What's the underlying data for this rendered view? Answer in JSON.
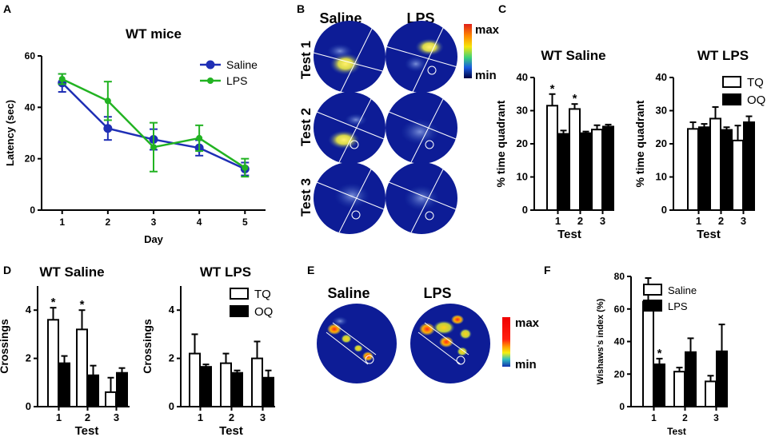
{
  "panel_labels": {
    "a": "A",
    "b": "B",
    "c": "C",
    "d": "D",
    "e": "E",
    "f": "F"
  },
  "heatmap_b": {
    "col_labels": [
      "Saline",
      "LPS"
    ],
    "row_labels": [
      "Test 1",
      "Test 2",
      "Test 3"
    ],
    "scale_max": "max",
    "scale_min": "min"
  },
  "heatmap_e": {
    "labels": [
      "Saline",
      "LPS"
    ],
    "scale_max": "max",
    "scale_min": "min"
  },
  "colors": {
    "saline_line": "#1f2fb5",
    "lps_line": "#22b322",
    "tq_fill": "#ffffff",
    "oq_fill": "#000000",
    "heat_bg": "#0a1a9a"
  },
  "chart_data": [
    {
      "id": "A",
      "type": "line",
      "title": "WT mice",
      "xlabel": "Day",
      "ylabel": "Latency (sec)",
      "x": [
        1,
        2,
        3,
        4,
        5
      ],
      "xlim": [
        0.55,
        5.45
      ],
      "ylim": [
        0,
        60
      ],
      "yticks": [
        0,
        20,
        40,
        60
      ],
      "legend_position": "top-right",
      "series": [
        {
          "name": "Saline",
          "values": [
            49.5,
            31.8,
            27.5,
            24.2,
            16.0
          ],
          "errors": [
            3.5,
            4.5,
            4.0,
            3.0,
            2.5
          ],
          "color": "#1f2fb5"
        },
        {
          "name": "LPS",
          "values": [
            51.0,
            42.5,
            24.5,
            28.0,
            16.5
          ],
          "errors": [
            2.0,
            7.5,
            9.5,
            5.0,
            3.5
          ],
          "color": "#22b322"
        }
      ]
    },
    {
      "id": "C1",
      "type": "bar",
      "title": "WT Saline",
      "xlabel": "Test",
      "ylabel": "% time quadrant",
      "categories": [
        "1",
        "2",
        "3"
      ],
      "ylim": [
        0,
        40
      ],
      "yticks": [
        0,
        10,
        20,
        30,
        40
      ],
      "series": [
        {
          "name": "TQ",
          "values": [
            31.5,
            30.5,
            24.3
          ],
          "errors": [
            3.5,
            1.5,
            1.3
          ]
        },
        {
          "name": "OQ",
          "values": [
            23.0,
            23.2,
            25.2
          ],
          "errors": [
            1.0,
            0.5,
            0.6
          ]
        }
      ],
      "annotations": [
        {
          "category": "1",
          "text": "*"
        },
        {
          "category": "2",
          "text": "*"
        }
      ]
    },
    {
      "id": "C2",
      "type": "bar",
      "title": "WT LPS",
      "xlabel": "Test",
      "ylabel": "% time quadrant",
      "categories": [
        "1",
        "2",
        "3"
      ],
      "ylim": [
        0,
        40
      ],
      "yticks": [
        0,
        10,
        20,
        30,
        40
      ],
      "legend_position": "top-right",
      "series": [
        {
          "name": "TQ",
          "values": [
            24.5,
            27.6,
            21.0
          ],
          "errors": [
            2.0,
            3.5,
            4.5
          ]
        },
        {
          "name": "OQ",
          "values": [
            25.0,
            24.2,
            26.5
          ],
          "errors": [
            1.0,
            0.8,
            1.8
          ]
        }
      ]
    },
    {
      "id": "D1",
      "type": "bar",
      "title": "WT Saline",
      "xlabel": "Test",
      "ylabel": "Crossings",
      "categories": [
        "1",
        "2",
        "3"
      ],
      "ylim": [
        0,
        5
      ],
      "yticks": [
        0,
        2,
        4
      ],
      "series": [
        {
          "name": "TQ",
          "values": [
            3.6,
            3.2,
            0.6
          ],
          "errors": [
            0.5,
            0.8,
            0.6
          ]
        },
        {
          "name": "OQ",
          "values": [
            1.8,
            1.3,
            1.4
          ],
          "errors": [
            0.3,
            0.4,
            0.2
          ]
        }
      ],
      "annotations": [
        {
          "category": "1",
          "text": "*"
        },
        {
          "category": "2",
          "text": "*"
        }
      ]
    },
    {
      "id": "D2",
      "type": "bar",
      "title": "WT LPS",
      "xlabel": "Test",
      "ylabel": "Crossings",
      "categories": [
        "1",
        "2",
        "3"
      ],
      "ylim": [
        0,
        5
      ],
      "yticks": [
        0,
        2,
        4
      ],
      "legend_position": "top-right",
      "series": [
        {
          "name": "TQ",
          "values": [
            2.2,
            1.8,
            2.0
          ],
          "errors": [
            0.8,
            0.4,
            0.7
          ]
        },
        {
          "name": "OQ",
          "values": [
            1.65,
            1.4,
            1.2
          ],
          "errors": [
            0.1,
            0.1,
            0.3
          ]
        }
      ]
    },
    {
      "id": "F",
      "type": "bar",
      "xlabel": "Test",
      "ylabel": "Wishaws's index (%)",
      "categories": [
        "1",
        "2",
        "3"
      ],
      "ylim": [
        0,
        80
      ],
      "yticks": [
        0,
        20,
        40,
        60,
        80
      ],
      "legend_position": "top-right",
      "series": [
        {
          "name": "Saline",
          "values": [
            64.5,
            21.5,
            15.5
          ],
          "errors": [
            14.5,
            2.5,
            3.5
          ]
        },
        {
          "name": "LPS",
          "values": [
            26.0,
            33.5,
            34.0
          ],
          "errors": [
            3.5,
            8.5,
            16.5
          ]
        }
      ],
      "annotations": [
        {
          "category": "1",
          "text": "*",
          "series": "LPS"
        }
      ]
    }
  ]
}
